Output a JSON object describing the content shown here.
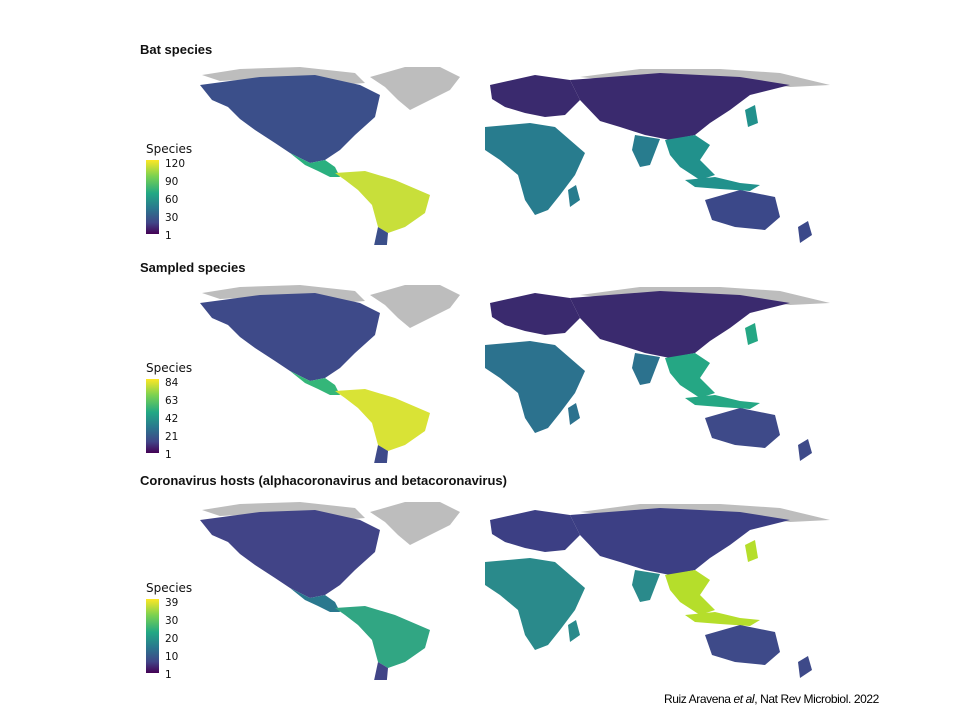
{
  "panels": [
    {
      "title": "Bat species",
      "legend": {
        "title": "Species",
        "ticks": [
          "120",
          "90",
          "60",
          "30",
          "1"
        ]
      },
      "hotspots": {
        "south_america": "#c8df3a",
        "central_america": "#2bb07f",
        "africa": "#287c8e",
        "southeast_asia": "#21918c",
        "north_america": "#3b4f8a",
        "eurasia": "#3a2a6e",
        "australia": "#3b4889"
      }
    },
    {
      "title": "Sampled species",
      "legend": {
        "title": "Species",
        "ticks": [
          "84",
          "63",
          "42",
          "21",
          "1"
        ]
      },
      "hotspots": {
        "south_america": "#d9e336",
        "central_america": "#34b679",
        "africa": "#2c728e",
        "southeast_asia": "#25a784",
        "north_america": "#3e4a89",
        "eurasia": "#3a2a6e",
        "australia": "#3e4a89"
      }
    },
    {
      "title": "Coronavirus hosts (alphacoronavirus and betacoronavirus)",
      "legend": {
        "title": "Species",
        "ticks": [
          "39",
          "30",
          "20",
          "10",
          "1"
        ]
      },
      "hotspots": {
        "south_america": "#31a683",
        "central_america": "#2a788e",
        "africa": "#2a8a8b",
        "southeast_asia": "#b5de2b",
        "north_america": "#414487",
        "eurasia": "#3c3f84",
        "australia": "#3e4a89"
      }
    }
  ],
  "credit": {
    "authors": "Ruiz Aravena",
    "etal": "et al",
    "rest": ", Nat Rev Microbiol. 2022"
  }
}
